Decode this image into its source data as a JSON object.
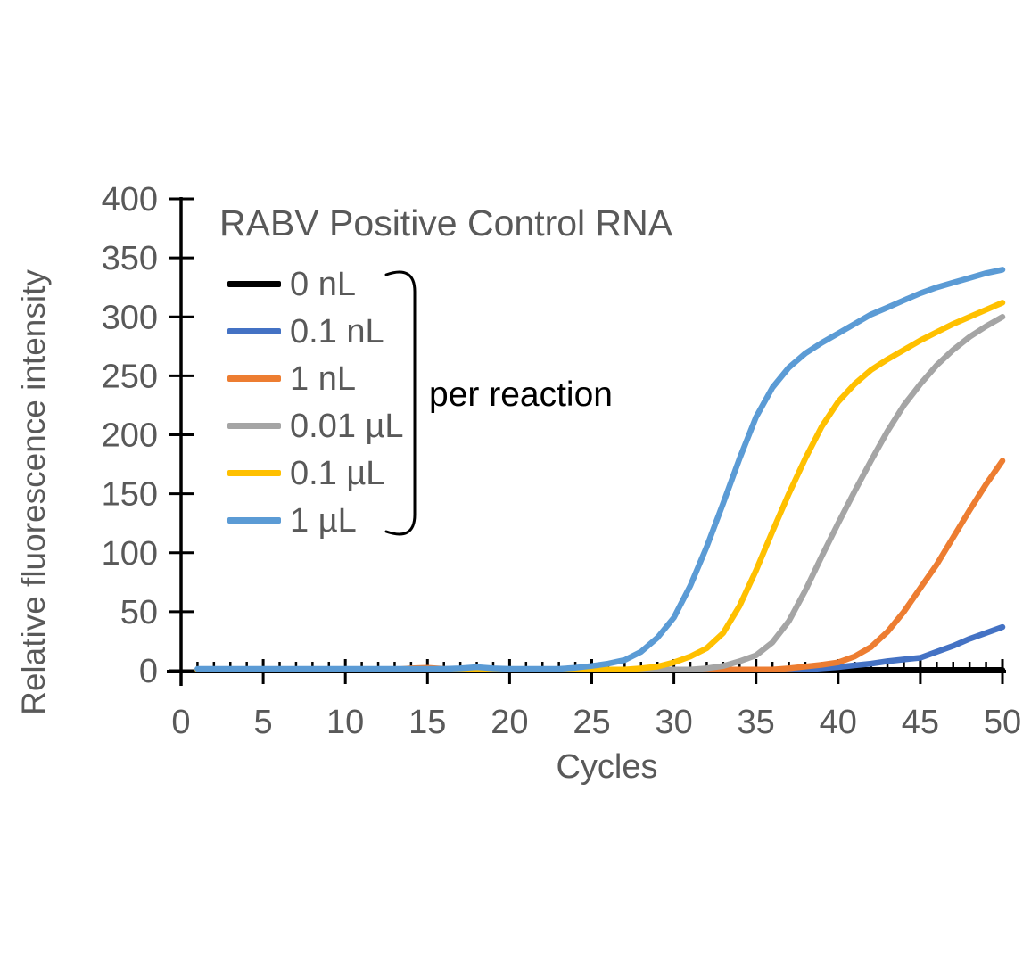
{
  "chart_data": {
    "type": "line",
    "title": "RABV Positive Control RNA",
    "xlabel": "Cycles",
    "ylabel": "Relative fluorescence intensity",
    "legend_note": "per reaction",
    "legend_position": "upper left inside plot, bracketed",
    "grid": false,
    "xlim": [
      0,
      50
    ],
    "ylim": [
      0,
      400
    ],
    "x_major_ticks": [
      0,
      5,
      10,
      15,
      20,
      25,
      30,
      35,
      40,
      45,
      50
    ],
    "x_minor_step": 1,
    "y_ticks": [
      0,
      50,
      100,
      150,
      200,
      250,
      300,
      350,
      400
    ],
    "axis_color": "#000000",
    "label_color": "#595959",
    "x": [
      1,
      2,
      3,
      4,
      5,
      6,
      7,
      8,
      9,
      10,
      11,
      12,
      13,
      14,
      15,
      16,
      17,
      18,
      19,
      20,
      21,
      22,
      23,
      24,
      25,
      26,
      27,
      28,
      29,
      30,
      31,
      32,
      33,
      34,
      35,
      36,
      37,
      38,
      39,
      40,
      41,
      42,
      43,
      44,
      45,
      46,
      47,
      48,
      49,
      50
    ],
    "series": [
      {
        "name": "0 nL",
        "color": "#000000",
        "values": [
          0.5,
          0.5,
          0.5,
          0.5,
          0.5,
          0.5,
          0.5,
          0.5,
          0.5,
          0.5,
          0.5,
          0.5,
          0.5,
          0.5,
          0.5,
          0.5,
          0.5,
          0.5,
          0.5,
          0.5,
          0.5,
          0.5,
          0.5,
          0.5,
          0.5,
          0.5,
          0.5,
          0.5,
          0.5,
          0.5,
          0.5,
          0.5,
          0.5,
          0.5,
          0.5,
          0.5,
          0.5,
          0.5,
          0.5,
          0.5,
          0.5,
          0.5,
          0.5,
          0.5,
          0.5,
          0.5,
          0.5,
          0.5,
          0.5,
          0.5
        ]
      },
      {
        "name": "0.1 nL",
        "color": "#4472C4",
        "values": [
          1,
          1,
          1,
          1,
          1,
          1,
          1,
          1,
          1,
          1,
          1,
          1,
          1,
          1,
          1,
          1,
          1,
          1,
          1,
          1,
          1,
          1,
          1,
          1,
          1,
          1,
          1,
          1,
          1,
          1,
          1,
          1,
          1,
          1,
          1,
          1,
          1,
          1,
          2,
          3,
          4.5,
          6,
          8,
          9.5,
          11,
          16,
          21,
          27,
          32,
          37
        ]
      },
      {
        "name": "1 nL",
        "color": "#ED7D31",
        "values": [
          1,
          1,
          1,
          1,
          1,
          1,
          1,
          1,
          1,
          1,
          1,
          1,
          1,
          2,
          2.5,
          1.5,
          1,
          1,
          1,
          1,
          1,
          1,
          1,
          1,
          1,
          1,
          1,
          1,
          1,
          1,
          1,
          1,
          1,
          1,
          1,
          1,
          2,
          3.5,
          5,
          7,
          12,
          20,
          33,
          50,
          70,
          90,
          113,
          136,
          158,
          178
        ]
      },
      {
        "name": "0.01 µL",
        "color": "#A5A5A5",
        "values": [
          1,
          1,
          1,
          1,
          1,
          1,
          1,
          1,
          1,
          1,
          1,
          1,
          1,
          1,
          1,
          1,
          1,
          1,
          1,
          1,
          1,
          1,
          1,
          1,
          1,
          1,
          1,
          1,
          1,
          1,
          1,
          2,
          4,
          8,
          13,
          24,
          42,
          68,
          97,
          125,
          152,
          178,
          203,
          225,
          243,
          259,
          272,
          283,
          292,
          300
        ]
      },
      {
        "name": "0.1 µL",
        "color": "#FFC000",
        "values": [
          1,
          1,
          1,
          1,
          1,
          1,
          1,
          1,
          1,
          1,
          1,
          1,
          1,
          1,
          1,
          1,
          1,
          1,
          1,
          1,
          1,
          1,
          1,
          1,
          1,
          1,
          1,
          2,
          3.5,
          7,
          12,
          19,
          32,
          55,
          85,
          118,
          150,
          180,
          207,
          228,
          243,
          255,
          264,
          272,
          280,
          287,
          294,
          300,
          306,
          312
        ]
      },
      {
        "name": "1 µL",
        "color": "#5B9BD5",
        "values": [
          1.5,
          1.5,
          1.5,
          1.5,
          1.5,
          1.5,
          1.5,
          1.5,
          1.5,
          1.5,
          1.5,
          1.5,
          1.5,
          1.5,
          1.5,
          1.5,
          2,
          3,
          2,
          1.5,
          1.5,
          1.5,
          1.5,
          2.5,
          4,
          6,
          9,
          16,
          28,
          45,
          72,
          105,
          142,
          180,
          215,
          240,
          257,
          269,
          278,
          286,
          294,
          302,
          308,
          314,
          320,
          325,
          329,
          333,
          337,
          340
        ]
      }
    ]
  }
}
